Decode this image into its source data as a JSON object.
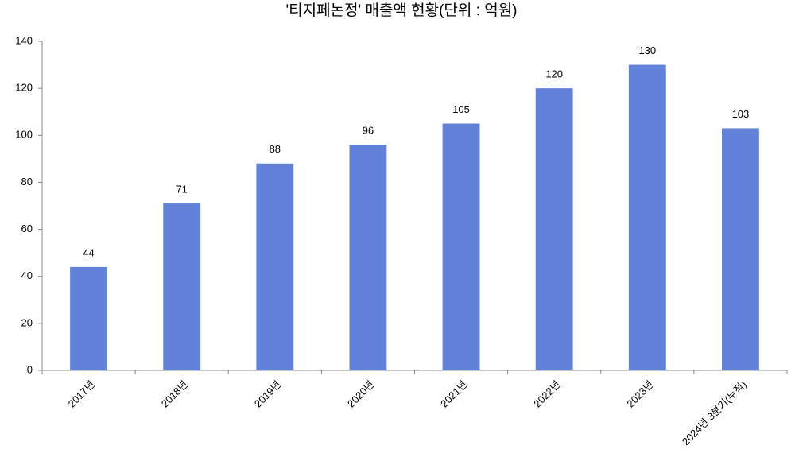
{
  "chart_data": {
    "type": "bar",
    "title": "'티지페논정' 매출액 현황(단위 : 억원)",
    "categories": [
      "2017년",
      "2018년",
      "2019년",
      "2020년",
      "2021년",
      "2022년",
      "2023년",
      "2024년 3분기(누적)"
    ],
    "values": [
      44,
      71,
      88,
      96,
      105,
      120,
      130,
      103
    ],
    "color": "#6281d9",
    "ylim": [
      0,
      140
    ],
    "yticks": [
      0,
      20,
      40,
      60,
      80,
      100,
      120,
      140
    ],
    "grid": false
  }
}
